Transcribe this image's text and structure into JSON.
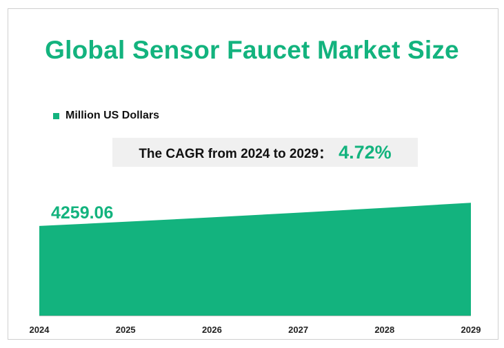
{
  "title": "Global Sensor Faucet Market Size",
  "legend": {
    "label": "Million US Dollars",
    "color": "#13b37e"
  },
  "cagr": {
    "text": "The CAGR from 2024 to 2029：",
    "value": "4.72%"
  },
  "colors": {
    "accent": "#13b37e",
    "axis": "#bfbfbf",
    "cagr_bg": "#f0f0f0"
  },
  "chart_data": {
    "type": "area",
    "title": "Global Sensor Faucet Market Size",
    "x": [
      "2024",
      "2025",
      "2026",
      "2027",
      "2028",
      "2029"
    ],
    "series": [
      {
        "name": "Million US Dollars",
        "values": [
          4259.06,
          4459.7,
          4669.8,
          4889.8,
          5120.1,
          5361.3
        ]
      }
    ],
    "data_labels": {
      "2024": "4259.06"
    },
    "ylim": [
      0,
      5500
    ],
    "grid": false,
    "legend_position": "top-left"
  }
}
